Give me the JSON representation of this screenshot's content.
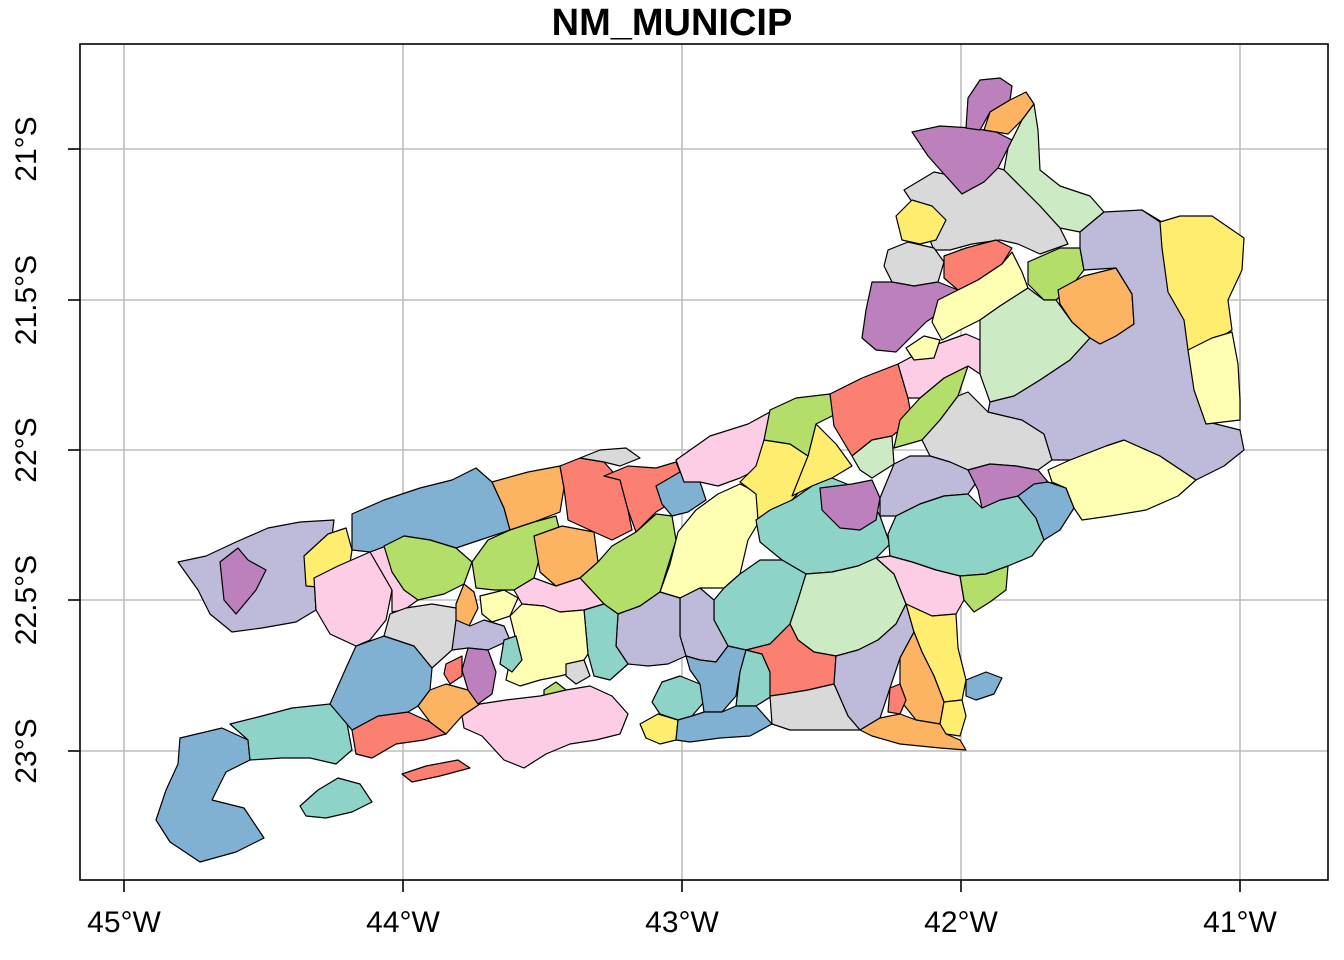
{
  "title": "NM_MUNICIP",
  "map": {
    "lon_ticks": [
      "45°W",
      "44°W",
      "43°W",
      "42°W",
      "41°W"
    ],
    "lat_ticks": [
      "21°S",
      "21.5°S",
      "22°S",
      "22.5°S",
      "23°S"
    ],
    "lon_range": [
      -45.15,
      -40.7
    ],
    "lat_range": [
      -23.45,
      -20.65
    ],
    "grid": true,
    "palette": [
      "#8DD3C7",
      "#FFFFB3",
      "#BEBADA",
      "#FB8072",
      "#80B1D3",
      "#FDB462",
      "#B3DE69",
      "#FCCDE5",
      "#D9D9D9",
      "#BC80BD",
      "#CCEBC5",
      "#FFED6F"
    ]
  }
}
